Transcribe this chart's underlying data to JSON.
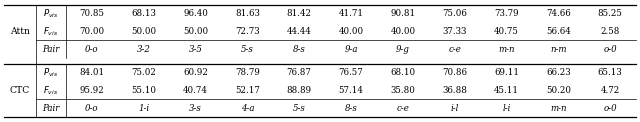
{
  "ctc_headers": [
    "Pair",
    "0-o",
    "1-i",
    "3-s",
    "4-a",
    "5-s",
    "8-s",
    "c-e",
    "i-l",
    "l-i",
    "m-n",
    "o-0"
  ],
  "ctc_row1": [
    "95.92",
    "55.10",
    "40.74",
    "52.17",
    "88.89",
    "57.14",
    "35.80",
    "36.88",
    "45.11",
    "50.20",
    "4.72"
  ],
  "ctc_row2": [
    "84.01",
    "75.02",
    "60.92",
    "78.79",
    "76.87",
    "76.57",
    "68.10",
    "70.86",
    "69.11",
    "66.23",
    "65.13"
  ],
  "attn_headers": [
    "Pair",
    "0-o",
    "3-2",
    "3-5",
    "5-s",
    "8-s",
    "9-a",
    "9-g",
    "c-e",
    "m-n",
    "n-m",
    "o-0"
  ],
  "attn_row1": [
    "70.00",
    "50.00",
    "50.00",
    "72.73",
    "44.44",
    "40.00",
    "40.00",
    "37.33",
    "40.75",
    "56.64",
    "2.58"
  ],
  "attn_row2": [
    "70.85",
    "68.13",
    "96.40",
    "81.63",
    "81.42",
    "41.71",
    "90.81",
    "75.06",
    "73.79",
    "74.66",
    "85.25"
  ],
  "row_label_ctc": "CTC",
  "row_label_attn": "Attn",
  "bg_color": "#ffffff"
}
